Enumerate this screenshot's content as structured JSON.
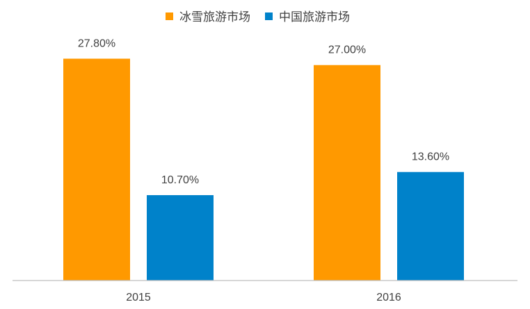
{
  "chart_data": {
    "type": "bar",
    "title": "",
    "xlabel": "",
    "ylabel": "",
    "categories": [
      "2015",
      "2016"
    ],
    "series": [
      {
        "name": "冰雪旅游市场",
        "values": [
          27.8,
          27.0
        ],
        "labels": [
          "27.80%",
          "27.00%"
        ],
        "color": "#FF9900"
      },
      {
        "name": "中国旅游市场",
        "values": [
          10.7,
          13.6
        ],
        "labels": [
          "10.70%",
          "13.60%"
        ],
        "color": "#0082CA"
      }
    ],
    "ylim": [
      0,
      31.5
    ],
    "grid": false,
    "legend": "top-center"
  }
}
